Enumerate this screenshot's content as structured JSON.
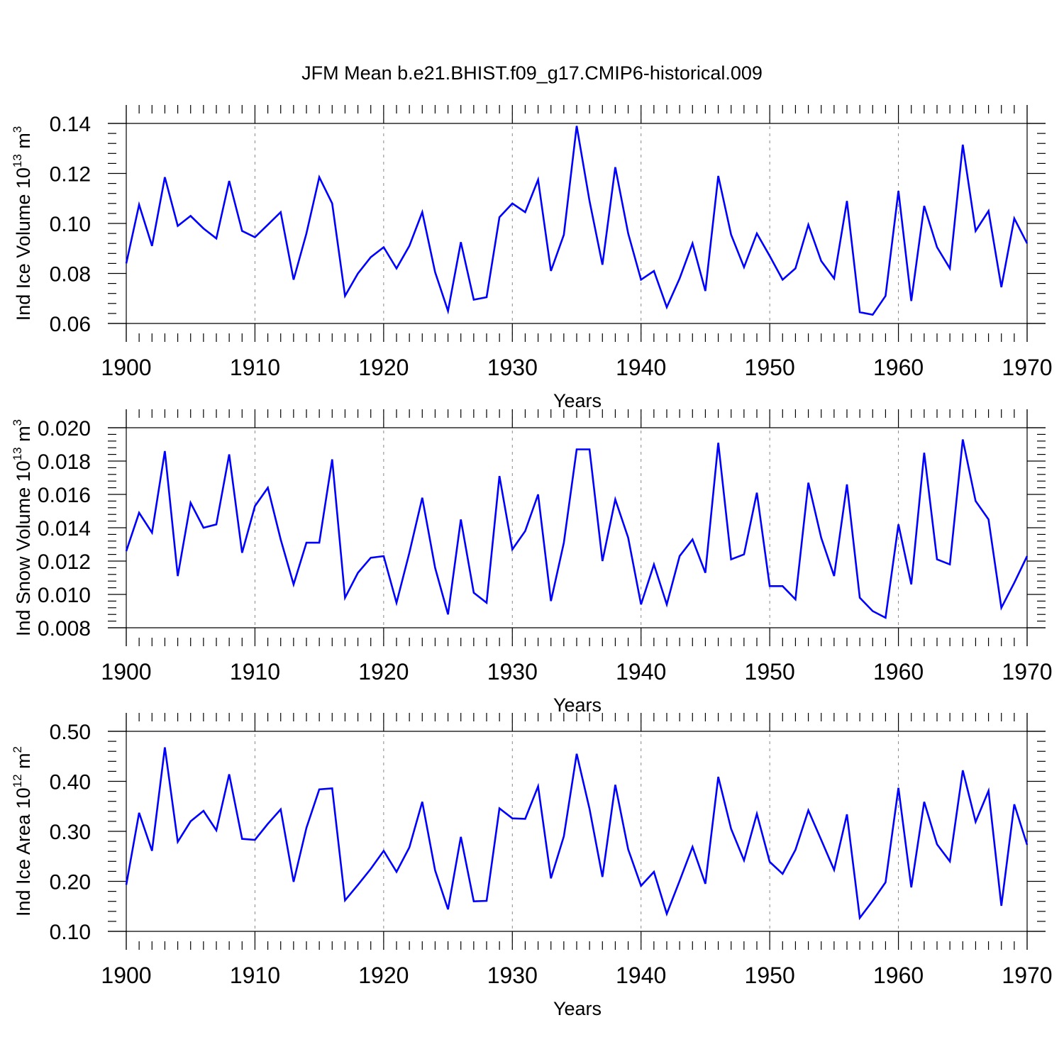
{
  "title": "JFM Mean b.e21.BHIST.f09_g17.CMIP6-historical.009",
  "colors": {
    "line": "#0000ff",
    "axis": "#000000",
    "grid": "#888888"
  },
  "chart_data": [
    {
      "type": "line",
      "ylabel_prefix": "Ind Ice Volume 10",
      "ylabel_sup": "13",
      "ylabel_unit": " m",
      "ylabel_unit_sup": "3",
      "xlabel": "Years",
      "xlim": [
        1900,
        1970
      ],
      "ylim": [
        0.06,
        0.14
      ],
      "yticks": [
        0.06,
        0.08,
        0.1,
        0.12,
        0.14
      ],
      "ytick_labels": [
        "0.06",
        "0.08",
        "0.10",
        "0.12",
        "0.14"
      ],
      "xticks": [
        1900,
        1910,
        1920,
        1930,
        1940,
        1950,
        1960,
        1970
      ],
      "xtick_labels": [
        "1900",
        "1910",
        "1920",
        "1930",
        "1940",
        "1950",
        "1960",
        "1970"
      ],
      "gridlines_x": [
        1910,
        1920,
        1930,
        1940,
        1950,
        1960
      ],
      "x_start": 1900,
      "values": [
        0.084,
        0.1075,
        0.091,
        0.1185,
        0.099,
        0.103,
        0.098,
        0.094,
        0.117,
        0.097,
        0.0945,
        0.0995,
        0.1045,
        0.0775,
        0.096,
        0.1185,
        0.108,
        0.071,
        0.08,
        0.0865,
        0.0905,
        0.082,
        0.091,
        0.1045,
        0.0805,
        0.065,
        0.0925,
        0.0695,
        0.0705,
        0.1025,
        0.108,
        0.1045,
        0.1175,
        0.081,
        0.0955,
        0.139,
        0.109,
        0.0835,
        0.1225,
        0.096,
        0.0775,
        0.081,
        0.0665,
        0.078,
        0.092,
        0.073,
        0.119,
        0.0955,
        0.0825,
        0.096,
        0.087,
        0.0775,
        0.082,
        0.0995,
        0.085,
        0.078,
        0.109,
        0.0645,
        0.0635,
        0.071,
        0.113,
        0.069,
        0.107,
        0.0905,
        0.082,
        0.1315,
        0.097,
        0.105,
        0.0745,
        0.102,
        0.092
      ]
    },
    {
      "type": "line",
      "ylabel_prefix": "Ind Snow Volume 10",
      "ylabel_sup": "13",
      "ylabel_unit": " m",
      "ylabel_unit_sup": "3",
      "xlabel": "Years",
      "xlim": [
        1900,
        1970
      ],
      "ylim": [
        0.008,
        0.02
      ],
      "yticks": [
        0.008,
        0.01,
        0.012,
        0.014,
        0.016,
        0.018,
        0.02
      ],
      "ytick_labels": [
        "0.008",
        "0.010",
        "0.012",
        "0.014",
        "0.016",
        "0.018",
        "0.020"
      ],
      "xticks": [
        1900,
        1910,
        1920,
        1930,
        1940,
        1950,
        1960,
        1970
      ],
      "xtick_labels": [
        "1900",
        "1910",
        "1920",
        "1930",
        "1940",
        "1950",
        "1960",
        "1970"
      ],
      "gridlines_x": [
        1910,
        1920,
        1930,
        1940,
        1950,
        1960
      ],
      "x_start": 1900,
      "values": [
        0.0126,
        0.0149,
        0.0137,
        0.0186,
        0.0111,
        0.0155,
        0.014,
        0.0142,
        0.0184,
        0.0125,
        0.0153,
        0.0164,
        0.0133,
        0.0106,
        0.0131,
        0.0131,
        0.0181,
        0.0098,
        0.0113,
        0.0122,
        0.0123,
        0.0095,
        0.0125,
        0.0158,
        0.0116,
        0.0088,
        0.0145,
        0.0101,
        0.0095,
        0.0171,
        0.0127,
        0.0138,
        0.016,
        0.0096,
        0.0131,
        0.0187,
        0.0187,
        0.012,
        0.0157,
        0.0134,
        0.0094,
        0.0118,
        0.0094,
        0.0123,
        0.0133,
        0.0113,
        0.0191,
        0.0121,
        0.0124,
        0.0161,
        0.0105,
        0.0105,
        0.0097,
        0.0167,
        0.0134,
        0.0111,
        0.0166,
        0.0098,
        0.009,
        0.0086,
        0.0142,
        0.0106,
        0.0185,
        0.0121,
        0.0118,
        0.0193,
        0.0156,
        0.0145,
        0.0092,
        0.0107,
        0.0123
      ]
    },
    {
      "type": "line",
      "ylabel_prefix": "Ind Ice Area 10",
      "ylabel_sup": "12",
      "ylabel_unit": " m",
      "ylabel_unit_sup": "2",
      "xlabel": "Years",
      "xlim": [
        1900,
        1970
      ],
      "ylim": [
        0.1,
        0.5
      ],
      "yticks": [
        0.1,
        0.2,
        0.3,
        0.4,
        0.5
      ],
      "ytick_labels": [
        "0.10",
        "0.20",
        "0.30",
        "0.40",
        "0.50"
      ],
      "xticks": [
        1900,
        1910,
        1920,
        1930,
        1940,
        1950,
        1960,
        1970
      ],
      "xtick_labels": [
        "1900",
        "1910",
        "1920",
        "1930",
        "1940",
        "1950",
        "1960",
        "1970"
      ],
      "gridlines_x": [
        1910,
        1920,
        1930,
        1940,
        1950,
        1960
      ],
      "x_start": 1900,
      "values": [
        0.193,
        0.337,
        0.261,
        0.468,
        0.279,
        0.32,
        0.341,
        0.302,
        0.414,
        0.285,
        0.283,
        0.315,
        0.344,
        0.199,
        0.307,
        0.384,
        0.386,
        0.162,
        0.193,
        0.225,
        0.261,
        0.219,
        0.268,
        0.359,
        0.222,
        0.144,
        0.289,
        0.16,
        0.161,
        0.346,
        0.326,
        0.325,
        0.39,
        0.206,
        0.29,
        0.455,
        0.345,
        0.209,
        0.393,
        0.264,
        0.191,
        0.219,
        0.135,
        0.201,
        0.269,
        0.195,
        0.409,
        0.305,
        0.242,
        0.335,
        0.239,
        0.215,
        0.263,
        0.342,
        0.283,
        0.223,
        0.334,
        0.127,
        0.161,
        0.198,
        0.387,
        0.188,
        0.359,
        0.274,
        0.24,
        0.422,
        0.319,
        0.381,
        0.151,
        0.354,
        0.273
      ]
    }
  ]
}
